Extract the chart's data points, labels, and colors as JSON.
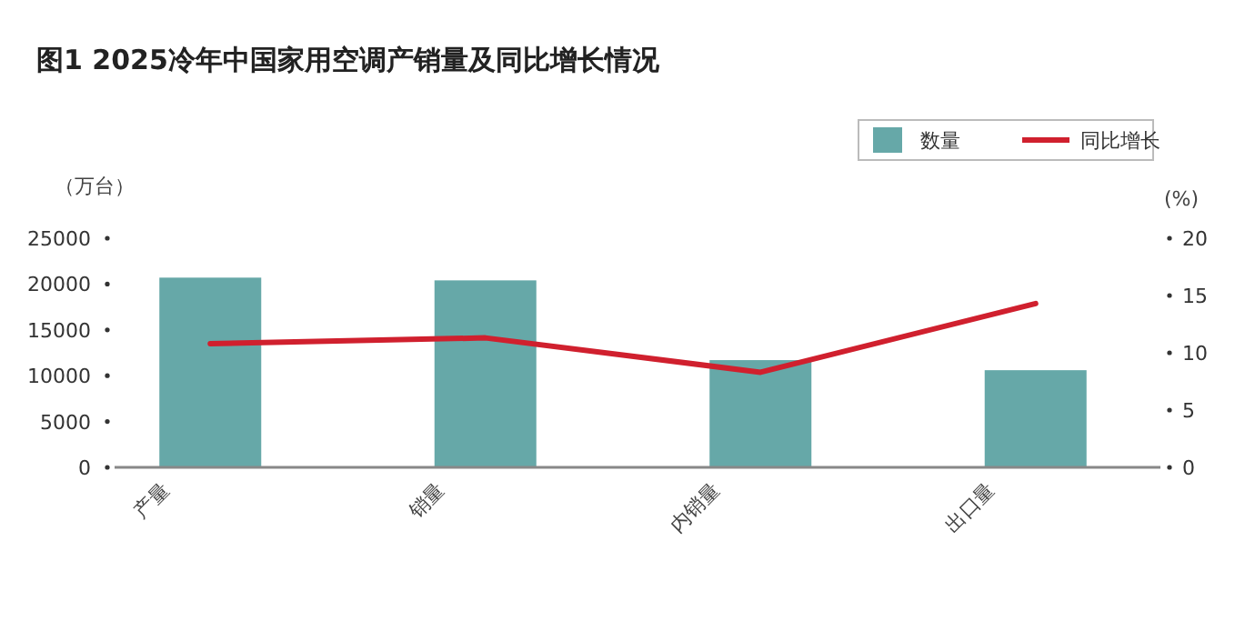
{
  "chart_data": {
    "type": "bar",
    "title": "图1  2025冷年中国家用空调产销量及同比增长情况",
    "ylabel": "（万台）",
    "y2label": "(%)",
    "categories": [
      "产量",
      "销量",
      "内销量",
      "出口量"
    ],
    "series": [
      {
        "name": "数量",
        "color": "#66a8a8",
        "values": [
          20700,
          20400,
          11700,
          10600
        ]
      },
      {
        "name": "同比增长",
        "type": "line",
        "axis": "y2",
        "color": "#d0202e",
        "values": [
          10.8,
          11.3,
          8.3,
          14.3
        ]
      }
    ],
    "ylim": [
      0,
      25000
    ],
    "yticks": [
      0,
      5000,
      10000,
      15000,
      20000,
      25000
    ],
    "y2lim": [
      0,
      20
    ],
    "y2ticks": [
      0,
      5,
      10,
      15,
      20
    ],
    "grid": false,
    "legend": "top right",
    "marker": "none",
    "line_style": "solid"
  }
}
